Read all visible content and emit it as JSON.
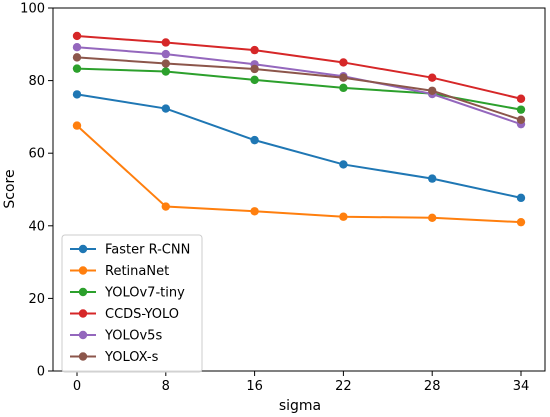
{
  "chart_data": {
    "type": "line",
    "title": "",
    "xlabel": "sigma",
    "ylabel": "Score",
    "categories": [
      "0",
      "8",
      "16",
      "22",
      "28",
      "34"
    ],
    "ylim": [
      0,
      100
    ],
    "yticks": [
      0,
      20,
      40,
      60,
      80,
      100
    ],
    "grid": false,
    "legend_position": "lower-left",
    "series": [
      {
        "name": "Faster R-CNN",
        "color": "#1f77b4",
        "values": [
          76.2,
          72.3,
          63.6,
          56.9,
          53.0,
          47.7
        ]
      },
      {
        "name": "RetinaNet",
        "color": "#ff7f0e",
        "values": [
          67.6,
          45.3,
          44.0,
          42.5,
          42.2,
          41.0
        ]
      },
      {
        "name": "YOLOv7-tiny",
        "color": "#2ca02c",
        "values": [
          83.3,
          82.5,
          80.2,
          78.0,
          76.4,
          72.0
        ]
      },
      {
        "name": "CCDS-YOLO",
        "color": "#d62728",
        "values": [
          92.3,
          90.5,
          88.4,
          85.0,
          80.8,
          75.0
        ]
      },
      {
        "name": "YOLOv5s",
        "color": "#9467bd",
        "values": [
          89.2,
          87.3,
          84.5,
          81.2,
          76.3,
          68.0
        ]
      },
      {
        "name": "YOLOX-s",
        "color": "#8c564b",
        "values": [
          86.4,
          84.7,
          83.2,
          80.8,
          77.2,
          69.2
        ]
      }
    ]
  }
}
